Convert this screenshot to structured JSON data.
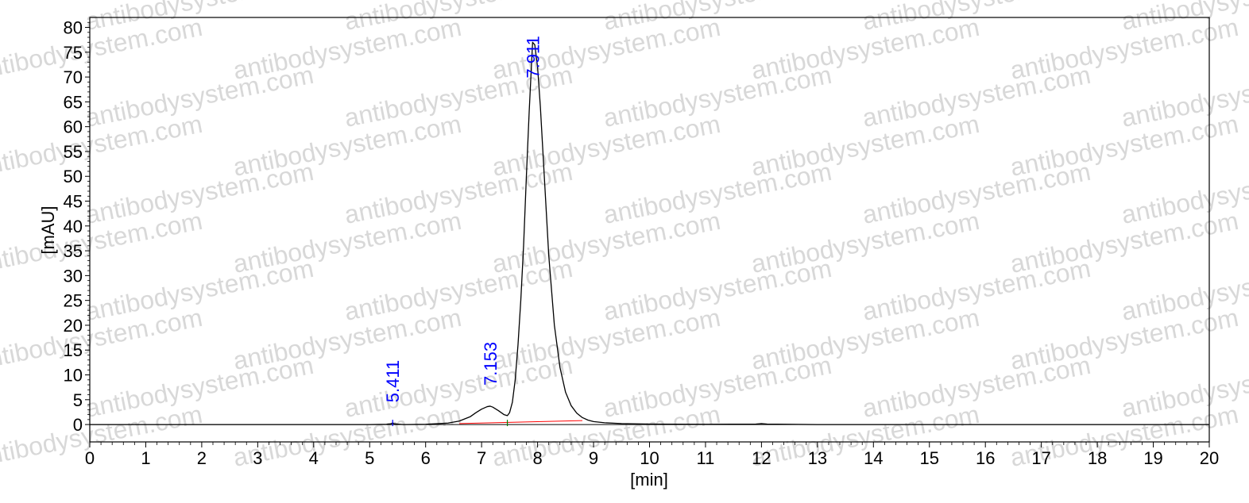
{
  "chart_data": {
    "type": "line",
    "xlabel": "[min]",
    "ylabel": "[mAU]",
    "xlim": [
      0,
      20
    ],
    "ylim": [
      -3.5,
      82
    ],
    "xticks": [
      0,
      1,
      2,
      3,
      4,
      5,
      6,
      7,
      8,
      9,
      10,
      11,
      12,
      13,
      14,
      15,
      16,
      17,
      18,
      19,
      20
    ],
    "yticks": [
      0,
      5,
      10,
      15,
      20,
      25,
      30,
      35,
      40,
      45,
      50,
      55,
      60,
      65,
      70,
      75,
      80
    ],
    "grid": false,
    "legend": "none",
    "colors": {
      "trace": "#000000",
      "baseline": "#ff0000",
      "peak_label": "#0000ff",
      "marker": "#008000"
    },
    "series": [
      {
        "x": [
          0.0,
          1.0,
          2.0,
          3.0,
          4.0,
          4.5,
          5.0,
          5.3,
          5.38,
          5.41,
          5.44,
          5.6,
          6.0,
          6.4,
          6.6,
          6.8,
          6.9,
          7.0,
          7.1,
          7.153,
          7.2,
          7.3,
          7.4,
          7.46,
          7.5,
          7.55,
          7.6,
          7.65,
          7.7,
          7.75,
          7.8,
          7.85,
          7.9,
          7.911,
          7.95,
          8.0,
          8.05,
          8.1,
          8.15,
          8.2,
          8.3,
          8.4,
          8.5,
          8.6,
          8.7,
          8.8,
          8.9,
          9.0,
          9.2,
          9.5,
          10.0,
          11.0,
          11.9,
          12.0,
          12.1,
          13.0,
          14.0,
          15.0,
          16.0,
          17.0,
          18.0,
          19.0,
          20.0
        ],
        "y": [
          0.0,
          0.0,
          0.0,
          0.0,
          0.0,
          0.0,
          0.0,
          0.05,
          0.15,
          0.3,
          0.15,
          0.0,
          0.05,
          0.3,
          0.7,
          1.6,
          2.4,
          3.1,
          3.6,
          3.7,
          3.5,
          2.8,
          2.0,
          1.8,
          2.4,
          4.5,
          9.0,
          16.0,
          25.0,
          36.0,
          50.0,
          63.0,
          74.5,
          77.0,
          76.5,
          72.0,
          64.0,
          54.0,
          44.0,
          34.0,
          20.0,
          11.5,
          6.5,
          3.8,
          2.3,
          1.4,
          0.9,
          0.6,
          0.35,
          0.2,
          0.1,
          0.05,
          0.1,
          0.2,
          0.1,
          0.0,
          0.0,
          0.0,
          0.0,
          0.0,
          0.0,
          0.0,
          0.0
        ]
      }
    ],
    "baseline": {
      "x": [
        6.6,
        8.8
      ],
      "y": [
        0.2,
        0.8
      ]
    },
    "peaks": [
      {
        "label": "5.411",
        "x": 5.411,
        "y": 0.3
      },
      {
        "label": "7.153",
        "x": 7.153,
        "y": 3.7
      },
      {
        "label": "7.911",
        "x": 7.911,
        "y": 77.0
      }
    ],
    "markers_x": [
      5.411,
      7.46
    ]
  },
  "watermark": {
    "text": "antibodysystem.com"
  }
}
